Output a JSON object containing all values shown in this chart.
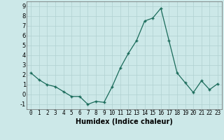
{
  "x": [
    0,
    1,
    2,
    3,
    4,
    5,
    6,
    7,
    8,
    9,
    10,
    11,
    12,
    13,
    14,
    15,
    16,
    17,
    18,
    19,
    20,
    21,
    22,
    23
  ],
  "y": [
    2.2,
    1.5,
    1.0,
    0.8,
    0.3,
    -0.2,
    -0.2,
    -1.0,
    -0.7,
    -0.8,
    0.8,
    2.7,
    4.2,
    5.5,
    7.5,
    7.8,
    8.8,
    5.5,
    2.2,
    1.2,
    0.2,
    1.4,
    0.5,
    1.1
  ],
  "xlabel": "Humidex (Indice chaleur)",
  "ylim": [
    -1.5,
    9.5
  ],
  "xlim": [
    -0.5,
    23.5
  ],
  "yticks": [
    -1,
    0,
    1,
    2,
    3,
    4,
    5,
    6,
    7,
    8,
    9
  ],
  "xticks": [
    0,
    1,
    2,
    3,
    4,
    5,
    6,
    7,
    8,
    9,
    10,
    11,
    12,
    13,
    14,
    15,
    16,
    17,
    18,
    19,
    20,
    21,
    22,
    23
  ],
  "line_color": "#1a6b5a",
  "marker_color": "#1a6b5a",
  "bg_color": "#cce8e8",
  "grid_color": "#b0d0d0",
  "xlabel_fontsize": 7,
  "tick_fontsize": 5.5
}
